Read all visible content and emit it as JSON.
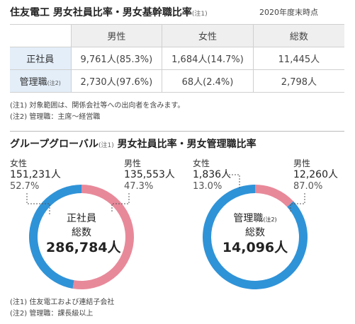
{
  "section1": {
    "title": "住友電工 男女社員比率・男女基幹職比率",
    "title_note": "(注1)",
    "as_of": "2020年度末時点",
    "table": {
      "headers": [
        "男性",
        "女性",
        "総数"
      ],
      "rows": [
        {
          "label": "正社員",
          "note": "",
          "male": "9,761人(85.3%)",
          "female": "1,684人(14.7%)",
          "total": "11,445人"
        },
        {
          "label": "管理職",
          "note": "(注2)",
          "male": "2,730人(97.6%)",
          "female": "68人(2.4%)",
          "total": "2,798人"
        }
      ]
    },
    "notes": [
      "(注1) 対象範囲は、関係会社等への出向者を含みます。",
      "(注2) 管理職：主席〜経営職"
    ]
  },
  "section2": {
    "title": "グループグローバル",
    "title_note": "(注1)",
    "title_rest": " 男女社員比率・男女管理職比率",
    "notes": [
      "(注1) 住友電工および連結子会社",
      "(注2) 管理職：課長級以上"
    ]
  },
  "chart_data": [
    {
      "type": "pie",
      "donut": true,
      "center_label": "正社員",
      "center_label_note": "",
      "center_sub": "総数",
      "total": "286,784人",
      "slices": [
        {
          "name": "女性",
          "count": "151,231人",
          "value": 52.7,
          "pct_text": "52.7%",
          "color": "#e8899a"
        },
        {
          "name": "男性",
          "count": "135,553人",
          "value": 47.3,
          "pct_text": "47.3%",
          "color": "#2f93d8"
        }
      ]
    },
    {
      "type": "pie",
      "donut": true,
      "center_label": "管理職",
      "center_label_note": "(注2)",
      "center_sub": "総数",
      "total": "14,096人",
      "slices": [
        {
          "name": "女性",
          "count": "1,836人",
          "value": 13.0,
          "pct_text": "13.0%",
          "color": "#e8899a"
        },
        {
          "name": "男性",
          "count": "12,260人",
          "value": 87.0,
          "pct_text": "87.0%",
          "color": "#2f93d8"
        }
      ]
    }
  ]
}
